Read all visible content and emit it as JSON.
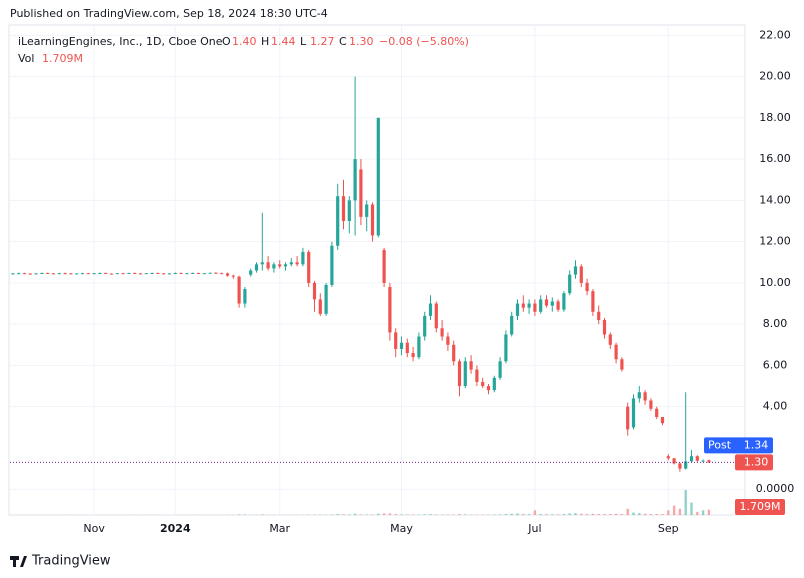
{
  "header": {
    "published": "Published on TradingView.com, Sep 18, 2024 18:30 UTC-4",
    "brand": "TradingView"
  },
  "chart_data": {
    "type": "candlestick",
    "title": "iLearningEngines, Inc., 1D, Cboe One",
    "legend_ohlc": [
      {
        "key": "O",
        "text": "1.40"
      },
      {
        "key": "H",
        "text": "1.44"
      },
      {
        "key": "L",
        "text": "1.27"
      },
      {
        "key": "C",
        "text": "1.30"
      }
    ],
    "change": "−0.08 (−5.80%)",
    "volume_title": "Vol",
    "up_color": "#26a69a",
    "down_color": "#ef5350",
    "categories": [
      null,
      null,
      null,
      null,
      null,
      null,
      null,
      null,
      null,
      null,
      null,
      null,
      null,
      null,
      "Nov",
      null,
      null,
      null,
      null,
      null,
      null,
      null,
      null,
      null,
      null,
      null,
      null,
      null,
      "2024",
      null,
      null,
      null,
      null,
      null,
      null,
      null,
      null,
      null,
      null,
      null,
      null,
      null,
      null,
      null,
      null,
      null,
      "Mar",
      null,
      null,
      null,
      null,
      null,
      null,
      null,
      null,
      null,
      null,
      null,
      null,
      null,
      null,
      null,
      null,
      null,
      null,
      null,
      null,
      "May",
      null,
      null,
      null,
      null,
      null,
      null,
      null,
      null,
      null,
      null,
      null,
      null,
      null,
      null,
      null,
      null,
      null,
      null,
      null,
      null,
      null,
      null,
      "Jul",
      null,
      null,
      null,
      null,
      null,
      null,
      null,
      null,
      null,
      null,
      null,
      null,
      null,
      null,
      null,
      null,
      null,
      null,
      null,
      null,
      null,
      null,
      "Sep",
      null,
      null,
      null,
      null,
      null,
      null,
      null
    ],
    "ohlc": [
      [
        10.45,
        10.48,
        10.42,
        10.46
      ],
      [
        10.46,
        10.5,
        10.44,
        10.47
      ],
      [
        10.47,
        10.49,
        10.43,
        10.45
      ],
      [
        10.45,
        10.48,
        10.42,
        10.44
      ],
      [
        10.44,
        10.47,
        10.41,
        10.46
      ],
      [
        10.46,
        10.5,
        10.44,
        10.48
      ],
      [
        10.48,
        10.5,
        10.45,
        10.46
      ],
      [
        10.46,
        10.48,
        10.43,
        10.45
      ],
      [
        10.45,
        10.49,
        10.43,
        10.47
      ],
      [
        10.47,
        10.5,
        10.45,
        10.46
      ],
      [
        10.46,
        10.48,
        10.42,
        10.44
      ],
      [
        10.44,
        10.47,
        10.42,
        10.46
      ],
      [
        10.46,
        10.49,
        10.44,
        10.47
      ],
      [
        10.47,
        10.49,
        10.44,
        10.45
      ],
      [
        10.45,
        10.48,
        10.43,
        10.47
      ],
      [
        10.47,
        10.5,
        10.45,
        10.48
      ],
      [
        10.48,
        10.5,
        10.44,
        10.45
      ],
      [
        10.45,
        10.47,
        10.42,
        10.44
      ],
      [
        10.44,
        10.48,
        10.43,
        10.47
      ],
      [
        10.47,
        10.49,
        10.45,
        10.46
      ],
      [
        10.46,
        10.49,
        10.44,
        10.48
      ],
      [
        10.48,
        10.5,
        10.45,
        10.46
      ],
      [
        10.46,
        10.48,
        10.43,
        10.45
      ],
      [
        10.45,
        10.48,
        10.43,
        10.47
      ],
      [
        10.47,
        10.5,
        10.45,
        10.48
      ],
      [
        10.48,
        10.5,
        10.45,
        10.46
      ],
      [
        10.46,
        10.48,
        10.42,
        10.44
      ],
      [
        10.44,
        10.47,
        10.42,
        10.46
      ],
      [
        10.46,
        10.5,
        10.44,
        10.48
      ],
      [
        10.48,
        10.5,
        10.45,
        10.46
      ],
      [
        10.46,
        10.49,
        10.44,
        10.47
      ],
      [
        10.47,
        10.5,
        10.45,
        10.48
      ],
      [
        10.48,
        10.5,
        10.44,
        10.45
      ],
      [
        10.45,
        10.48,
        10.43,
        10.47
      ],
      [
        10.47,
        10.5,
        10.45,
        10.49
      ],
      [
        10.49,
        10.52,
        10.46,
        10.47
      ],
      [
        10.47,
        10.5,
        10.44,
        10.46
      ],
      [
        10.46,
        10.5,
        10.3,
        10.35
      ],
      [
        10.35,
        10.4,
        10.2,
        10.3
      ],
      [
        10.3,
        10.35,
        8.8,
        9.0
      ],
      [
        9.0,
        9.8,
        8.8,
        9.7
      ],
      [
        10.4,
        10.7,
        10.3,
        10.6
      ],
      [
        10.6,
        11.0,
        10.5,
        10.9
      ],
      [
        10.9,
        13.4,
        10.6,
        11.0
      ],
      [
        11.0,
        11.3,
        10.6,
        10.7
      ],
      [
        10.7,
        11.0,
        10.5,
        10.9
      ],
      [
        10.9,
        11.1,
        10.7,
        10.8
      ],
      [
        10.8,
        11.0,
        10.6,
        10.9
      ],
      [
        10.9,
        11.2,
        10.8,
        11.0
      ],
      [
        11.0,
        11.3,
        10.8,
        10.9
      ],
      [
        10.9,
        11.7,
        10.8,
        11.5
      ],
      [
        11.5,
        11.6,
        9.8,
        10.0
      ],
      [
        10.0,
        10.1,
        8.6,
        9.2
      ],
      [
        9.2,
        9.5,
        8.4,
        8.5
      ],
      [
        8.5,
        10.0,
        8.4,
        9.9
      ],
      [
        9.9,
        12.0,
        9.8,
        11.8
      ],
      [
        11.8,
        14.8,
        11.6,
        14.2
      ],
      [
        14.2,
        15.0,
        12.6,
        13.0
      ],
      [
        13.0,
        14.2,
        12.4,
        14.0
      ],
      [
        14.0,
        20.0,
        12.3,
        16.0
      ],
      [
        15.5,
        16.0,
        12.8,
        13.2
      ],
      [
        13.2,
        14.0,
        12.5,
        13.8
      ],
      [
        13.8,
        13.9,
        12.0,
        12.3
      ],
      [
        12.3,
        18.0,
        12.2,
        18.0
      ],
      [
        11.6,
        11.7,
        9.8,
        10.0
      ],
      [
        9.8,
        10.0,
        7.2,
        7.6
      ],
      [
        7.6,
        7.8,
        6.4,
        6.8
      ],
      [
        6.8,
        7.4,
        6.5,
        7.1
      ],
      [
        7.1,
        7.3,
        6.4,
        6.6
      ],
      [
        6.6,
        6.9,
        6.2,
        6.4
      ],
      [
        6.4,
        7.6,
        6.3,
        7.4
      ],
      [
        7.4,
        8.6,
        7.2,
        8.4
      ],
      [
        8.4,
        9.4,
        8.2,
        9.0
      ],
      [
        9.0,
        9.1,
        7.6,
        7.8
      ],
      [
        7.8,
        8.2,
        7.2,
        7.4
      ],
      [
        7.4,
        7.6,
        6.7,
        7.0
      ],
      [
        7.0,
        7.2,
        6.0,
        6.2
      ],
      [
        6.2,
        6.3,
        4.5,
        5.0
      ],
      [
        5.0,
        6.4,
        4.9,
        6.2
      ],
      [
        6.2,
        6.5,
        5.6,
        5.8
      ],
      [
        5.8,
        6.0,
        5.0,
        5.2
      ],
      [
        5.2,
        5.4,
        4.9,
        5.0
      ],
      [
        5.0,
        5.1,
        4.6,
        4.8
      ],
      [
        4.8,
        5.5,
        4.7,
        5.4
      ],
      [
        5.4,
        6.4,
        5.3,
        6.2
      ],
      [
        6.2,
        7.7,
        6.1,
        7.5
      ],
      [
        7.5,
        8.6,
        7.4,
        8.4
      ],
      [
        8.4,
        9.2,
        8.2,
        9.0
      ],
      [
        9.0,
        9.4,
        8.6,
        8.8
      ],
      [
        8.8,
        9.2,
        8.5,
        9.0
      ],
      [
        9.0,
        9.2,
        8.4,
        8.6
      ],
      [
        8.6,
        9.4,
        8.5,
        9.2
      ],
      [
        9.2,
        9.4,
        8.8,
        8.9
      ],
      [
        8.9,
        9.3,
        8.6,
        9.1
      ],
      [
        9.1,
        9.2,
        8.6,
        8.7
      ],
      [
        8.7,
        9.6,
        8.6,
        9.5
      ],
      [
        9.5,
        10.6,
        9.4,
        10.4
      ],
      [
        10.4,
        11.1,
        10.2,
        10.8
      ],
      [
        10.8,
        10.9,
        9.8,
        10.0
      ],
      [
        10.0,
        10.2,
        9.4,
        9.6
      ],
      [
        9.6,
        9.7,
        8.4,
        8.6
      ],
      [
        8.6,
        8.9,
        8.0,
        8.2
      ],
      [
        8.2,
        8.3,
        7.3,
        7.5
      ],
      [
        7.5,
        7.6,
        6.8,
        7.0
      ],
      [
        7.0,
        7.1,
        6.1,
        6.3
      ],
      [
        6.3,
        6.4,
        5.7,
        5.8
      ],
      [
        4.0,
        4.2,
        2.6,
        2.9
      ],
      [
        3.0,
        4.6,
        2.9,
        4.4
      ],
      [
        4.4,
        5.0,
        4.2,
        4.7
      ],
      [
        4.7,
        4.8,
        4.1,
        4.3
      ],
      [
        4.3,
        4.4,
        3.8,
        3.9
      ],
      [
        3.9,
        4.0,
        3.4,
        3.5
      ],
      [
        3.5,
        3.5,
        3.1,
        3.2
      ],
      [
        1.6,
        1.7,
        1.4,
        1.5
      ],
      [
        1.5,
        1.5,
        1.2,
        1.25
      ],
      [
        1.25,
        1.3,
        0.85,
        1.0
      ],
      [
        1.0,
        4.7,
        0.95,
        1.35
      ],
      [
        1.35,
        1.9,
        1.3,
        1.6
      ],
      [
        1.6,
        1.65,
        1.3,
        1.38
      ],
      [
        1.38,
        1.45,
        1.33,
        1.38
      ],
      [
        1.4,
        1.44,
        1.27,
        1.3
      ]
    ],
    "volume": [
      0.02,
      0.01,
      0.02,
      0.01,
      0.02,
      0.01,
      0.02,
      0.02,
      0.01,
      0.02,
      0.01,
      0.02,
      0.01,
      0.02,
      0.01,
      0.02,
      0.01,
      0.02,
      0.01,
      0.02,
      0.01,
      0.02,
      0.01,
      0.02,
      0.01,
      0.02,
      0.01,
      0.02,
      0.01,
      0.02,
      0.01,
      0.02,
      0.01,
      0.02,
      0.01,
      0.02,
      0.01,
      0.05,
      0.04,
      0.2,
      0.15,
      0.05,
      0.06,
      0.2,
      0.06,
      0.05,
      0.04,
      0.05,
      0.04,
      0.05,
      0.06,
      0.1,
      0.12,
      0.1,
      0.1,
      0.15,
      0.3,
      0.2,
      0.2,
      0.4,
      0.2,
      0.15,
      0.15,
      0.4,
      0.5,
      0.5,
      0.3,
      0.2,
      0.15,
      0.15,
      0.12,
      0.2,
      0.25,
      0.15,
      0.12,
      0.1,
      0.15,
      0.3,
      0.2,
      0.12,
      0.1,
      0.1,
      0.1,
      0.15,
      0.2,
      0.3,
      0.4,
      0.5,
      0.3,
      0.25,
      1.5,
      0.3,
      0.25,
      0.2,
      0.2,
      0.3,
      0.5,
      0.6,
      0.4,
      0.3,
      0.4,
      0.3,
      0.3,
      0.3,
      0.4,
      0.3,
      2.0,
      0.8,
      0.6,
      0.4,
      0.3,
      0.3,
      0.3,
      1.5,
      3.0,
      2.0,
      8.0,
      4.0,
      1.0,
      1.5,
      1.709
    ],
    "volume_label": "1.709M",
    "ylim": [
      -1.25,
      22.5
    ],
    "yticks": [
      {
        "value": 22,
        "label": "22.00"
      },
      {
        "value": 20,
        "label": "20.00"
      },
      {
        "value": 18,
        "label": "18.00"
      },
      {
        "value": 16,
        "label": "16.00"
      },
      {
        "value": 14,
        "label": "14.00"
      },
      {
        "value": 12,
        "label": "12.00"
      },
      {
        "value": 10,
        "label": "10.00"
      },
      {
        "value": 8,
        "label": "8.00"
      },
      {
        "value": 6,
        "label": "6.00"
      },
      {
        "value": 4,
        "label": "4.00"
      },
      {
        "value": 0,
        "label": "0.0000"
      }
    ],
    "post_market": {
      "label": "Post",
      "value": 1.34,
      "value_label": "1.34",
      "color": "#2962ff"
    },
    "last_price_label": "1.30",
    "price_line_color": "#7b1fa2",
    "grid": true
  }
}
